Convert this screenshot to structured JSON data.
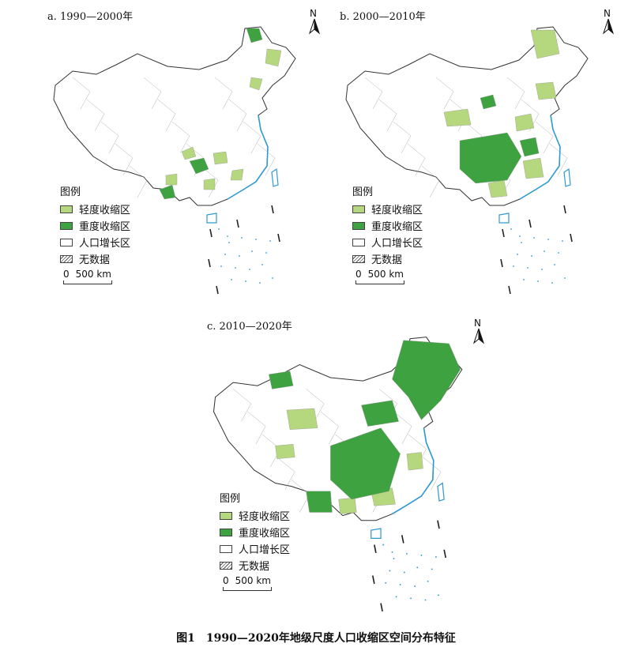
{
  "colors": {
    "light": "#b5d77e",
    "heavy": "#3ea240",
    "growth": "#ffffff",
    "border": "#9a9a9a",
    "coast": "#2e9ad0",
    "outline": "#333333"
  },
  "panels": [
    {
      "title": "a. 1990—2000年",
      "legend_title": "图例",
      "legend": [
        {
          "label": "轻度收缩区",
          "type": "light"
        },
        {
          "label": "重度收缩区",
          "type": "heavy"
        },
        {
          "label": "人口增长区",
          "type": "growth"
        },
        {
          "label": "无数据",
          "type": "nodata"
        }
      ],
      "scale_zero": "0",
      "scale_label": "500 km",
      "north": "N"
    },
    {
      "title": "b. 2000—2010年",
      "legend_title": "图例",
      "legend": [
        {
          "label": "轻度收缩区",
          "type": "light"
        },
        {
          "label": "重度收缩区",
          "type": "heavy"
        },
        {
          "label": "人口增长区",
          "type": "growth"
        },
        {
          "label": "无数据",
          "type": "nodata"
        }
      ],
      "scale_zero": "0",
      "scale_label": "500 km",
      "north": "N"
    },
    {
      "title": "c. 2010—2020年",
      "legend_title": "图例",
      "legend": [
        {
          "label": "轻度收缩区",
          "type": "light"
        },
        {
          "label": "重度收缩区",
          "type": "heavy"
        },
        {
          "label": "人口增长区",
          "type": "growth"
        },
        {
          "label": "无数据",
          "type": "nodata"
        }
      ],
      "scale_zero": "0",
      "scale_label": "500 km",
      "north": "N"
    }
  ],
  "caption": "图1　1990—2020年地级尺度人口收缩区空间分布特征"
}
